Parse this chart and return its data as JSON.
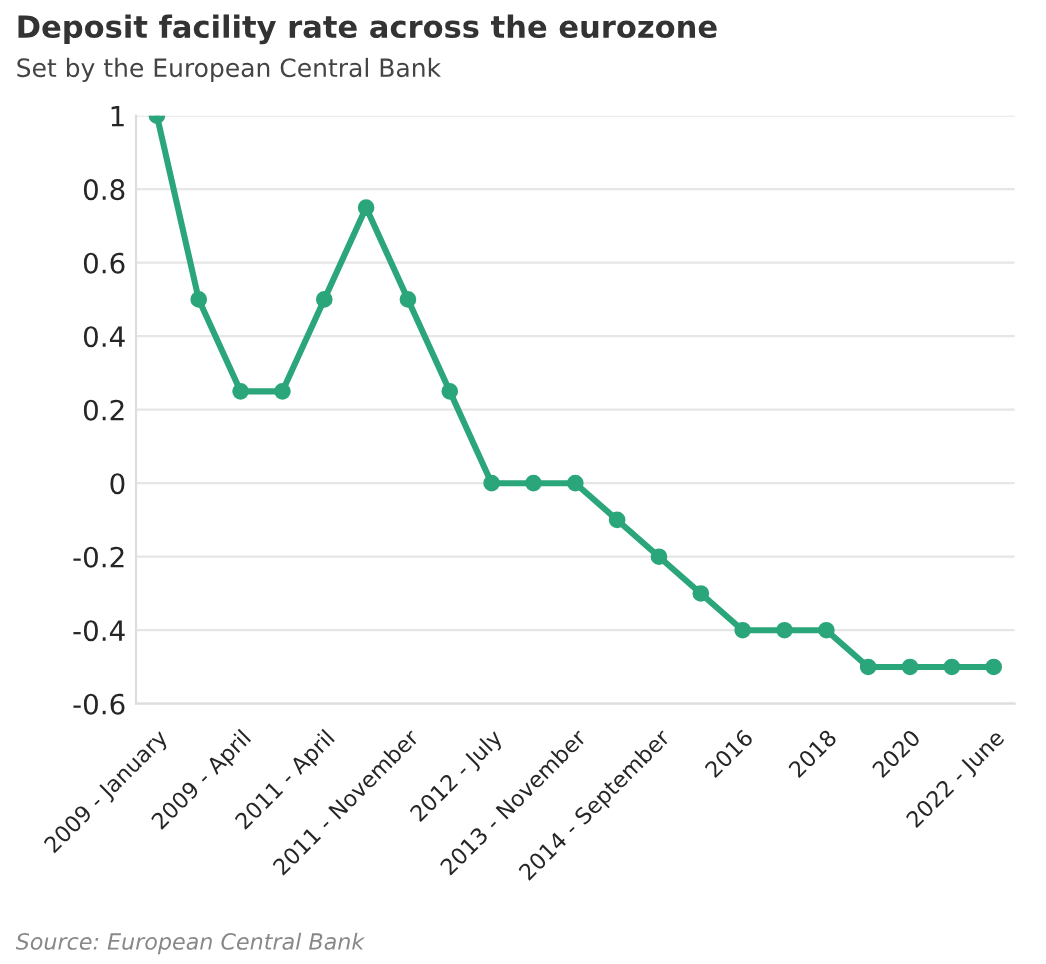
{
  "chart_data": {
    "type": "line",
    "title": "Deposit facility rate across the eurozone",
    "subtitle": "Set by the European Central Bank",
    "categories": [
      "2009 - January",
      null,
      "2009 - April",
      null,
      "2011 - April",
      null,
      "2011 - November",
      null,
      "2012 - July",
      null,
      "2013 - November",
      null,
      "2014 - September",
      null,
      "2016",
      null,
      "2018",
      null,
      "2020",
      null,
      "2022 - June"
    ],
    "series": [
      {
        "color": "#2aa67a",
        "values": [
          1,
          0.5,
          0.25,
          0.25,
          0.5,
          0.75,
          0.5,
          0.25,
          0,
          0,
          0,
          -0.1,
          -0.2,
          -0.3,
          -0.4,
          -0.4,
          -0.4,
          -0.5,
          -0.5,
          -0.5,
          -0.5
        ]
      }
    ],
    "ylim": [
      -0.6,
      1
    ],
    "yticks": [
      -0.6,
      -0.4,
      -0.2,
      0,
      0.2,
      0.4,
      0.6,
      0.8,
      1
    ],
    "grid": "y",
    "marker": "circle",
    "line_style": "solid",
    "legend": false,
    "annotations": [
      "Source: European Central Bank"
    ]
  }
}
